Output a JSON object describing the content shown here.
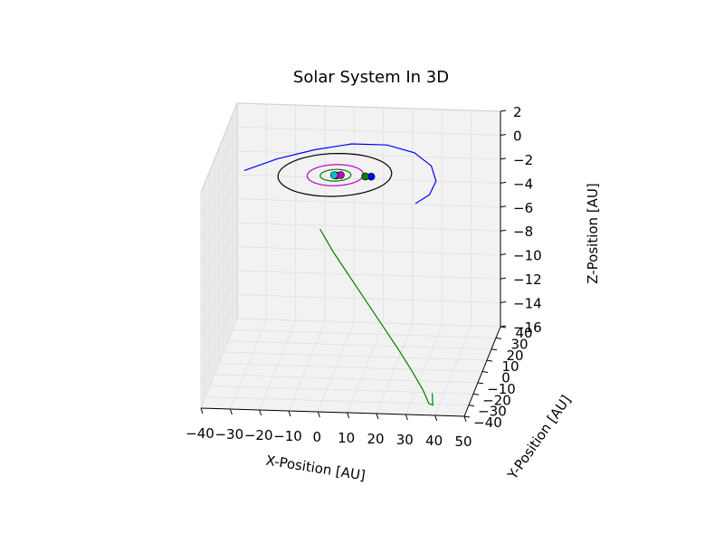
{
  "chart_data": {
    "type": "line",
    "projection": "3d",
    "title": "Solar System In 3D",
    "xlabel": "X-Position [AU]",
    "ylabel": "Y-Position [AU]",
    "zlabel": "Z-Position [AU]",
    "xlim": [
      -40,
      50
    ],
    "ylim": [
      -40,
      40
    ],
    "zlim": [
      -16,
      2
    ],
    "xticks": [
      "−40",
      "−30",
      "−20",
      "−10",
      "0",
      "10",
      "20",
      "30",
      "40",
      "50"
    ],
    "yticks": [
      "−40",
      "−30",
      "−20",
      "−10",
      "0",
      "10",
      "20",
      "30",
      "40"
    ],
    "zticks": [
      "2",
      "0",
      "−2",
      "−4",
      "−6",
      "−8",
      "−10",
      "−12",
      "−14",
      "−16"
    ],
    "grid": true,
    "series": [
      {
        "kind": "orbit",
        "color": "#000000",
        "semi_major": 19.2,
        "semi_minor": 19.1,
        "center": [
          -0.5,
          0.5
        ],
        "z": 0.0
      },
      {
        "kind": "orbit",
        "color": "#bf00bf",
        "semi_major": 9.5,
        "semi_minor": 9.4,
        "center": [
          -0.3,
          0.3
        ],
        "z": 0.0
      },
      {
        "kind": "orbit",
        "color": "#008000",
        "semi_major": 5.2,
        "semi_minor": 5.2,
        "center": [
          -0.2,
          0.2
        ],
        "z": 0.0
      },
      {
        "kind": "orbit",
        "color": "#ff0000",
        "semi_major": 1.52,
        "semi_minor": 1.5,
        "center": [
          0,
          0
        ],
        "z": 0.0
      },
      {
        "kind": "orbit",
        "color": "#0000ff",
        "semi_major": 1.0,
        "semi_minor": 1.0,
        "center": [
          0,
          0
        ],
        "z": 0.0
      },
      {
        "kind": "orbit",
        "color": "#00bfbf",
        "semi_major": 0.72,
        "semi_minor": 0.72,
        "center": [
          0,
          0
        ],
        "z": 0.0
      },
      {
        "kind": "orbit",
        "color": "#bfbf00",
        "semi_major": 0.39,
        "semi_minor": 0.38,
        "center": [
          0,
          0
        ],
        "z": 0.0
      },
      {
        "kind": "path",
        "color": "#0000ff",
        "x": [
          -32,
          -22,
          -10,
          2,
          14,
          24,
          31,
          34,
          33,
          29
        ],
        "y": [
          4,
          12,
          18,
          22,
          22,
          18,
          10,
          1,
          -7,
          -12
        ],
        "z": [
          -0.2,
          0.1,
          0.4,
          0.6,
          0.6,
          0.4,
          0.1,
          -0.3,
          -0.7,
          -1.0
        ]
      },
      {
        "kind": "path",
        "color": "#008000",
        "x": [
          -3,
          2,
          8,
          14,
          20,
          26,
          31,
          35,
          37,
          38,
          37.5
        ],
        "y": [
          -16,
          -19,
          -22,
          -25,
          -28,
          -31,
          -33,
          -34,
          -34,
          -32,
          -30
        ],
        "z": [
          -3,
          -4.6,
          -6.3,
          -8,
          -9.7,
          -11.4,
          -13,
          -14.5,
          -15.6,
          -15.9,
          -15.1
        ]
      }
    ],
    "markers": [
      {
        "color": "#0000ff",
        "x": 12,
        "y": 0,
        "z": 0
      },
      {
        "color": "#008000",
        "x": 10,
        "y": 0,
        "z": 0
      },
      {
        "color": "#ff0000",
        "x": 0,
        "y": 0,
        "z": 0
      },
      {
        "color": "#bf00bf",
        "x": 1.5,
        "y": 0.5,
        "z": 0
      },
      {
        "color": "#00bfbf",
        "x": -0.7,
        "y": 0.3,
        "z": 0
      }
    ]
  }
}
